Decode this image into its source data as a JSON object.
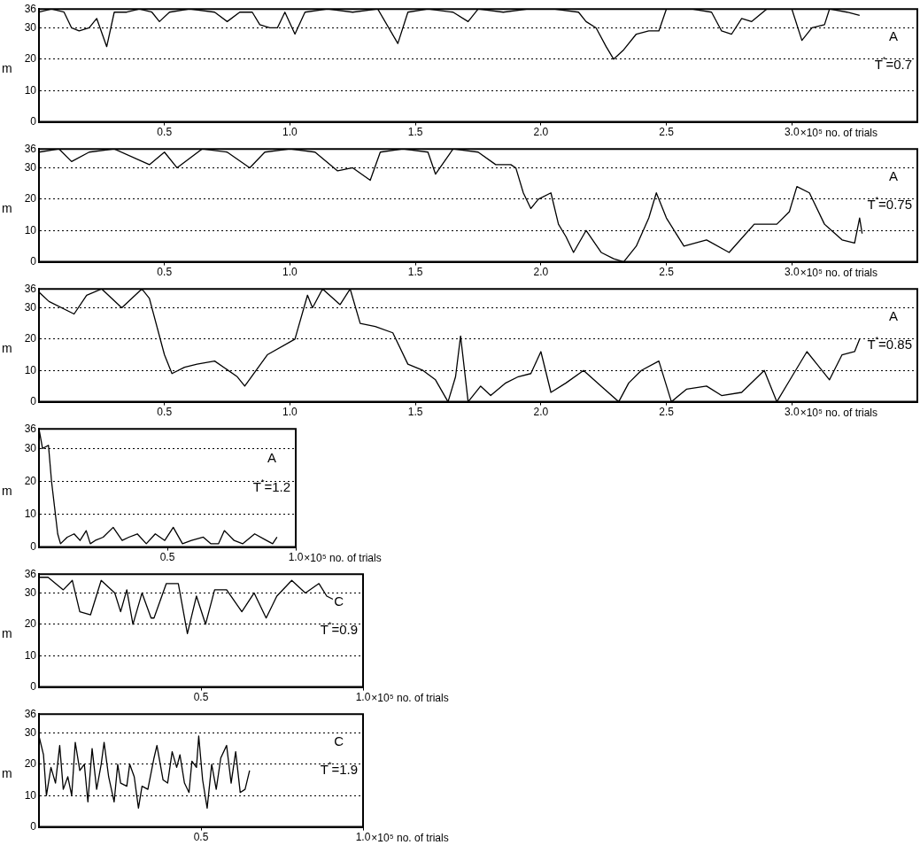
{
  "chart_data": [
    {
      "type": "line",
      "xlabel": "×10⁵ no. of trials",
      "ylabel": "m",
      "xlim": [
        0,
        3.5
      ],
      "ylim": [
        0,
        36
      ],
      "xticks": [
        0.5,
        {
          "value": 1,
          "label": "1.0"
        },
        1.5,
        {
          "value": 2,
          "label": "2.0"
        },
        2.5,
        {
          "value": 3,
          "label": "3.0"
        }
      ],
      "yticks": [
        0,
        10,
        20,
        30,
        36
      ],
      "grid": "y",
      "annotations": [
        "A",
        "T$^{*}$=0.7"
      ],
      "series": [
        {
          "color": "#000000",
          "x": [
            0,
            0.05,
            0.1,
            0.13,
            0.16,
            0.2,
            0.23,
            0.27,
            0.3,
            0.35,
            0.4,
            0.45,
            0.48,
            0.52,
            0.6,
            0.7,
            0.75,
            0.8,
            0.85,
            0.88,
            0.92,
            0.95,
            0.98,
            1.02,
            1.06,
            1.15,
            1.25,
            1.35,
            1.43,
            1.47,
            1.55,
            1.65,
            1.71,
            1.75,
            1.85,
            1.95,
            2.05,
            2.15,
            2.18,
            2.22,
            2.26,
            2.29,
            2.33,
            2.38,
            2.43,
            2.47,
            2.5,
            2.6,
            2.68,
            2.72,
            2.76,
            2.8,
            2.84,
            2.9,
            3.0,
            3.04,
            3.08,
            3.13,
            3.15,
            3.22,
            3.27
          ],
          "values": [
            35,
            36,
            35,
            30,
            29,
            30,
            33,
            24,
            35,
            35,
            36,
            35,
            32,
            35,
            36,
            35,
            32,
            35,
            35,
            31,
            30,
            30,
            35,
            28,
            35,
            36,
            35,
            36,
            25,
            35,
            36,
            35,
            32,
            36,
            35,
            36,
            36,
            35,
            32,
            30,
            24,
            20,
            23,
            28,
            29,
            29,
            36,
            36,
            35,
            29,
            28,
            33,
            32,
            36,
            36,
            26,
            30,
            31,
            36,
            35,
            34
          ]
        }
      ]
    },
    {
      "type": "line",
      "xlabel": "×10⁵ no. of trials",
      "ylabel": "m",
      "xlim": [
        0,
        3.5
      ],
      "ylim": [
        0,
        36
      ],
      "xticks": [
        0.5,
        {
          "value": 1,
          "label": "1.0"
        },
        1.5,
        {
          "value": 2,
          "label": "2.0"
        },
        2.5,
        {
          "value": 3,
          "label": "3.0"
        }
      ],
      "yticks": [
        0,
        10,
        20,
        30,
        36
      ],
      "grid": "y",
      "annotations": [
        "A",
        "T$^{*}$=0.75"
      ],
      "series": [
        {
          "color": "#000000",
          "x": [
            0,
            0.08,
            0.13,
            0.2,
            0.3,
            0.44,
            0.5,
            0.55,
            0.65,
            0.75,
            0.84,
            0.9,
            1.0,
            1.1,
            1.19,
            1.25,
            1.32,
            1.36,
            1.45,
            1.55,
            1.58,
            1.65,
            1.75,
            1.82,
            1.88,
            1.9,
            1.93,
            1.96,
            1.99,
            2.04,
            2.07,
            2.1,
            2.13,
            2.18,
            2.24,
            2.29,
            2.33,
            2.38,
            2.43,
            2.46,
            2.5,
            2.57,
            2.66,
            2.75,
            2.85,
            2.94,
            2.99,
            3.02,
            3.07,
            3.13,
            3.2,
            3.25,
            3.27,
            3.28
          ],
          "values": [
            35,
            36,
            32,
            35,
            36,
            31,
            35,
            30,
            36,
            35,
            30,
            35,
            36,
            35,
            29,
            30,
            26,
            35,
            36,
            35,
            28,
            36,
            35,
            31,
            31,
            30,
            22,
            17,
            20,
            22,
            12,
            8,
            3,
            10,
            3,
            1,
            0,
            5,
            14,
            22,
            14,
            5,
            7,
            3,
            12,
            12,
            16,
            24,
            22,
            12,
            7,
            6,
            14,
            9
          ]
        }
      ]
    },
    {
      "type": "line",
      "xlabel": "×10⁵ no. of trials",
      "ylabel": "m",
      "xlim": [
        0,
        3.5
      ],
      "ylim": [
        0,
        36
      ],
      "xticks": [
        0.5,
        {
          "value": 1,
          "label": "1.0"
        },
        1.5,
        {
          "value": 2,
          "label": "2.0"
        },
        2.5,
        {
          "value": 3,
          "label": "3.0"
        }
      ],
      "yticks": [
        0,
        10,
        20,
        30,
        36
      ],
      "grid": "y",
      "annotations": [
        "A",
        "T$^{*}$=0.85"
      ],
      "series": [
        {
          "color": "#000000",
          "x": [
            0,
            0.04,
            0.14,
            0.19,
            0.25,
            0.33,
            0.41,
            0.44,
            0.5,
            0.53,
            0.58,
            0.63,
            0.7,
            0.79,
            0.82,
            0.91,
            1.02,
            1.07,
            1.09,
            1.13,
            1.2,
            1.24,
            1.28,
            1.34,
            1.41,
            1.47,
            1.53,
            1.58,
            1.63,
            1.66,
            1.68,
            1.71,
            1.76,
            1.8,
            1.86,
            1.91,
            1.96,
            2.0,
            2.04,
            2.1,
            2.17,
            2.24,
            2.31,
            2.35,
            2.4,
            2.47,
            2.52,
            2.58,
            2.66,
            2.72,
            2.8,
            2.89,
            2.94,
            3.0,
            3.06,
            3.1,
            3.15,
            3.2,
            3.25,
            3.27
          ],
          "values": [
            35,
            32,
            28,
            34,
            36,
            30,
            36,
            33,
            15,
            9,
            11,
            12,
            13,
            8,
            5,
            15,
            20,
            34,
            30,
            36,
            31,
            36,
            25,
            24,
            22,
            12,
            10,
            7,
            0,
            8,
            21,
            0,
            5,
            2,
            6,
            8,
            9,
            16,
            3,
            6,
            10,
            5,
            0,
            6,
            10,
            13,
            0,
            4,
            5,
            2,
            3,
            10,
            0,
            8,
            16,
            12,
            7,
            15,
            16,
            20
          ]
        }
      ]
    },
    {
      "type": "line",
      "xlabel": "×10⁵ no. of trials",
      "ylabel": "m",
      "xlim": [
        0,
        1
      ],
      "ylim": [
        0,
        36
      ],
      "xticks": [
        0.5,
        {
          "value": 1,
          "label": "1.0"
        }
      ],
      "yticks": [
        0,
        10,
        20,
        30,
        36
      ],
      "grid": "y",
      "annotations": [
        "A",
        "T$^{*}$=1.2"
      ],
      "series": [
        {
          "color": "#000000",
          "x": [
            0,
            0.014,
            0.037,
            0.049,
            0.061,
            0.073,
            0.084,
            0.11,
            0.137,
            0.16,
            0.184,
            0.2,
            0.219,
            0.25,
            0.289,
            0.324,
            0.35,
            0.383,
            0.418,
            0.453,
            0.49,
            0.523,
            0.559,
            0.594,
            0.64,
            0.67,
            0.699,
            0.722,
            0.76,
            0.793,
            0.84,
            0.886,
            0.91,
            0.927
          ],
          "values": [
            36,
            30,
            31,
            20,
            12,
            4,
            1,
            3,
            4,
            2,
            5,
            1,
            2,
            3,
            6,
            2,
            3,
            4,
            1,
            4,
            2,
            6,
            1,
            2,
            3,
            1,
            1,
            5,
            2,
            1,
            4,
            2,
            1,
            3
          ]
        }
      ]
    },
    {
      "type": "line",
      "xlabel": "×10⁵ no. of trials",
      "ylabel": "m",
      "xlim": [
        0,
        1
      ],
      "ylim": [
        0,
        36
      ],
      "xticks": [
        0.5,
        {
          "value": 1,
          "label": "1.0"
        }
      ],
      "yticks": [
        0,
        10,
        20,
        30,
        36
      ],
      "grid": "y",
      "annotations": [
        "C",
        "T$^{*}$=0.9"
      ],
      "series": [
        {
          "color": "#000000",
          "x": [
            0,
            0.028,
            0.075,
            0.103,
            0.126,
            0.159,
            0.192,
            0.234,
            0.252,
            0.271,
            0.29,
            0.318,
            0.346,
            0.355,
            0.393,
            0.43,
            0.458,
            0.486,
            0.514,
            0.542,
            0.579,
            0.626,
            0.664,
            0.701,
            0.734,
            0.78,
            0.822,
            0.864,
            0.888,
            0.907
          ],
          "values": [
            35,
            35,
            31,
            34,
            24,
            23,
            34,
            30,
            24,
            31,
            20,
            30,
            22,
            22,
            33,
            33,
            17,
            29,
            20,
            31,
            31,
            24,
            30,
            22,
            29,
            34,
            30,
            33,
            29,
            28
          ]
        }
      ]
    },
    {
      "type": "line",
      "xlabel": "×10⁵ no. of trials",
      "ylabel": "m",
      "xlim": [
        0,
        1
      ],
      "ylim": [
        0,
        36
      ],
      "xticks": [
        0.5,
        {
          "value": 1,
          "label": "1.0"
        }
      ],
      "yticks": [
        0,
        10,
        20,
        30,
        36
      ],
      "grid": "y",
      "annotations": [
        "C",
        "T$^{*}$=1.9"
      ],
      "series": [
        {
          "color": "#000000",
          "x": [
            0,
            0.014,
            0.023,
            0.037,
            0.051,
            0.064,
            0.075,
            0.089,
            0.101,
            0.112,
            0.126,
            0.14,
            0.151,
            0.164,
            0.178,
            0.192,
            0.201,
            0.215,
            0.232,
            0.243,
            0.252,
            0.271,
            0.28,
            0.294,
            0.307,
            0.318,
            0.336,
            0.355,
            0.364,
            0.383,
            0.397,
            0.411,
            0.425,
            0.435,
            0.449,
            0.463,
            0.472,
            0.486,
            0.493,
            0.505,
            0.519,
            0.533,
            0.547,
            0.561,
            0.579,
            0.593,
            0.607,
            0.621,
            0.636,
            0.65
          ],
          "values": [
            29,
            23,
            10,
            19,
            14,
            26,
            12,
            16,
            10,
            27,
            18,
            20,
            8,
            25,
            12,
            20,
            27,
            16,
            8,
            20,
            14,
            13,
            20,
            16,
            6,
            13,
            12,
            22,
            26,
            15,
            14,
            24,
            19,
            23,
            14,
            11,
            21,
            19,
            29,
            15,
            6,
            20,
            12,
            22,
            26,
            14,
            24,
            11,
            12,
            18
          ]
        }
      ]
    }
  ]
}
